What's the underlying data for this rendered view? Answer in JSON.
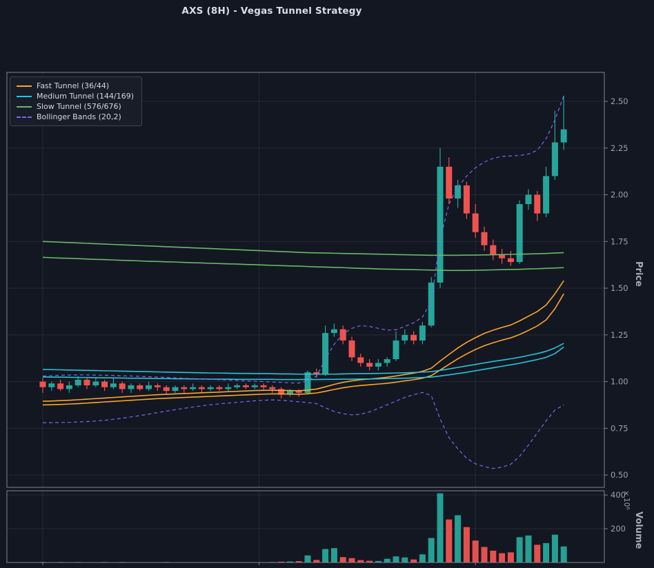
{
  "title": "AXS (8H) - Vegas Tunnel Strategy",
  "legend": [
    {
      "label": "Fast Tunnel (36/44)",
      "color": "#ffa726",
      "dash": false
    },
    {
      "label": "Medium Tunnel (144/169)",
      "color": "#26c6da",
      "dash": false
    },
    {
      "label": "Slow Tunnel (576/676)",
      "color": "#66bb6a",
      "dash": false
    },
    {
      "label": "Bollinger Bands (20,2)",
      "color": "#7b68ee",
      "dash": true
    }
  ],
  "axes": {
    "price_label": "Price",
    "price_ticks": [
      "2.50",
      "2.25",
      "2.00",
      "1.75",
      "1.50",
      "1.25",
      "1.00",
      "0.75",
      "0.50"
    ],
    "volume_label": "Volume",
    "volume_exponent": "×10⁶",
    "volume_ticks": [
      "400",
      "200"
    ]
  },
  "chart_data": {
    "type": "candlestick",
    "symbol": "AXS",
    "timeframe": "8H",
    "price_range": [
      0.434,
      2.655
    ],
    "volume_range": [
      0,
      425
    ],
    "vgrid_indices": [
      0,
      24.5,
      49
    ],
    "up_color": "#26a69a",
    "down_color": "#ef5350",
    "open": [
      1.0,
      0.97,
      0.99,
      0.96,
      0.98,
      1.01,
      0.98,
      1.0,
      0.97,
      0.99,
      0.96,
      0.98,
      0.96,
      0.98,
      0.97,
      0.95,
      0.97,
      0.96,
      0.97,
      0.96,
      0.97,
      0.96,
      0.97,
      0.98,
      0.97,
      0.98,
      0.97,
      0.96,
      0.93,
      0.95,
      0.94,
      1.05,
      1.04,
      1.26,
      1.28,
      1.22,
      1.13,
      1.1,
      1.08,
      1.1,
      1.12,
      1.22,
      1.25,
      1.22,
      1.3,
      1.53,
      2.15,
      1.98,
      2.05,
      1.9,
      1.8,
      1.73,
      1.68,
      1.66,
      1.64,
      1.95,
      2.0,
      1.9,
      2.1,
      2.28
    ],
    "close": [
      0.97,
      0.99,
      0.96,
      0.98,
      1.01,
      0.98,
      1.0,
      0.97,
      0.99,
      0.96,
      0.98,
      0.96,
      0.98,
      0.97,
      0.95,
      0.97,
      0.96,
      0.97,
      0.96,
      0.97,
      0.96,
      0.97,
      0.98,
      0.97,
      0.98,
      0.97,
      0.96,
      0.93,
      0.95,
      0.94,
      1.05,
      1.04,
      1.26,
      1.28,
      1.22,
      1.13,
      1.1,
      1.08,
      1.1,
      1.12,
      1.22,
      1.25,
      1.22,
      1.3,
      1.53,
      2.15,
      1.98,
      2.05,
      1.9,
      1.8,
      1.73,
      1.68,
      1.66,
      1.64,
      1.95,
      2.0,
      1.9,
      2.1,
      2.28,
      2.35
    ],
    "high": [
      1.02,
      1.0,
      1.01,
      1.0,
      1.03,
      1.02,
      1.02,
      1.01,
      1.02,
      1.0,
      0.99,
      0.99,
      1.0,
      0.99,
      0.98,
      0.98,
      0.98,
      0.99,
      0.98,
      0.98,
      0.98,
      0.99,
      0.99,
      0.99,
      0.99,
      0.99,
      0.98,
      0.97,
      0.96,
      0.96,
      1.06,
      1.07,
      1.3,
      1.31,
      1.3,
      1.24,
      1.15,
      1.12,
      1.12,
      1.13,
      1.27,
      1.28,
      1.27,
      1.32,
      1.56,
      2.25,
      2.2,
      2.08,
      2.07,
      1.95,
      1.83,
      1.76,
      1.71,
      1.7,
      1.97,
      2.03,
      2.02,
      2.15,
      2.45,
      2.53
    ],
    "low": [
      0.94,
      0.95,
      0.95,
      0.94,
      0.97,
      0.96,
      0.97,
      0.95,
      0.96,
      0.94,
      0.94,
      0.95,
      0.95,
      0.95,
      0.93,
      0.94,
      0.94,
      0.95,
      0.94,
      0.95,
      0.95,
      0.95,
      0.96,
      0.96,
      0.96,
      0.95,
      0.94,
      0.91,
      0.92,
      0.92,
      0.93,
      1.02,
      1.03,
      1.24,
      1.2,
      1.11,
      1.08,
      1.06,
      1.06,
      1.08,
      1.11,
      1.2,
      1.2,
      1.2,
      1.29,
      1.5,
      1.95,
      1.93,
      1.87,
      1.77,
      1.7,
      1.65,
      1.63,
      1.62,
      1.63,
      1.92,
      1.86,
      1.88,
      2.08,
      2.24
    ],
    "volume_millions": [
      3,
      2,
      3,
      2,
      3,
      2,
      2,
      3,
      2,
      3,
      2,
      2,
      2,
      2,
      3,
      2,
      2,
      2,
      2,
      2,
      2,
      2,
      2,
      2,
      2,
      2,
      3,
      5,
      6,
      8,
      42,
      15,
      80,
      85,
      32,
      26,
      14,
      10,
      9,
      22,
      36,
      30,
      18,
      48,
      145,
      410,
      255,
      280,
      210,
      130,
      92,
      70,
      55,
      60,
      150,
      160,
      105,
      115,
      165,
      95
    ],
    "overlays": [
      {
        "name": "fast-tunnel-upper",
        "color": "#ffa726",
        "width": 1.6,
        "dash": null,
        "values": [
          0.895,
          0.896,
          0.898,
          0.9,
          0.903,
          0.906,
          0.909,
          0.912,
          0.915,
          0.918,
          0.921,
          0.924,
          0.927,
          0.93,
          0.932,
          0.934,
          0.936,
          0.938,
          0.94,
          0.942,
          0.944,
          0.946,
          0.948,
          0.95,
          0.952,
          0.953,
          0.954,
          0.953,
          0.952,
          0.951,
          0.955,
          0.96,
          0.972,
          0.985,
          0.996,
          1.004,
          1.01,
          1.014,
          1.018,
          1.023,
          1.03,
          1.038,
          1.045,
          1.055,
          1.072,
          1.11,
          1.145,
          1.18,
          1.21,
          1.235,
          1.258,
          1.275,
          1.29,
          1.303,
          1.325,
          1.35,
          1.375,
          1.41,
          1.47,
          1.54
        ]
      },
      {
        "name": "fast-tunnel-lower",
        "color": "#ffa726",
        "width": 1.6,
        "dash": null,
        "values": [
          0.875,
          0.876,
          0.878,
          0.88,
          0.882,
          0.885,
          0.888,
          0.891,
          0.894,
          0.897,
          0.9,
          0.903,
          0.906,
          0.909,
          0.911,
          0.913,
          0.915,
          0.917,
          0.919,
          0.921,
          0.923,
          0.925,
          0.927,
          0.929,
          0.931,
          0.933,
          0.934,
          0.934,
          0.933,
          0.932,
          0.935,
          0.939,
          0.948,
          0.958,
          0.967,
          0.974,
          0.979,
          0.983,
          0.987,
          0.991,
          0.997,
          1.004,
          1.01,
          1.018,
          1.032,
          1.062,
          1.092,
          1.122,
          1.148,
          1.172,
          1.192,
          1.208,
          1.222,
          1.234,
          1.252,
          1.274,
          1.298,
          1.33,
          1.39,
          1.47
        ]
      },
      {
        "name": "medium-tunnel-upper",
        "color": "#26c6da",
        "width": 1.6,
        "dash": null,
        "values": [
          1.065,
          1.064,
          1.063,
          1.062,
          1.061,
          1.06,
          1.059,
          1.058,
          1.057,
          1.056,
          1.055,
          1.054,
          1.053,
          1.052,
          1.051,
          1.05,
          1.049,
          1.048,
          1.047,
          1.046,
          1.046,
          1.045,
          1.044,
          1.044,
          1.043,
          1.043,
          1.042,
          1.041,
          1.041,
          1.04,
          1.04,
          1.04,
          1.04,
          1.04,
          1.041,
          1.042,
          1.043,
          1.043,
          1.044,
          1.045,
          1.046,
          1.047,
          1.049,
          1.051,
          1.053,
          1.06,
          1.068,
          1.076,
          1.084,
          1.092,
          1.1,
          1.108,
          1.115,
          1.122,
          1.13,
          1.14,
          1.15,
          1.162,
          1.18,
          1.205
        ]
      },
      {
        "name": "medium-tunnel-lower",
        "color": "#26c6da",
        "width": 1.6,
        "dash": null,
        "values": [
          1.025,
          1.024,
          1.024,
          1.023,
          1.022,
          1.022,
          1.021,
          1.02,
          1.02,
          1.019,
          1.018,
          1.018,
          1.017,
          1.016,
          1.016,
          1.015,
          1.015,
          1.014,
          1.014,
          1.013,
          1.013,
          1.013,
          1.012,
          1.012,
          1.012,
          1.012,
          1.012,
          1.011,
          1.011,
          1.011,
          1.011,
          1.011,
          1.012,
          1.012,
          1.013,
          1.013,
          1.014,
          1.014,
          1.015,
          1.016,
          1.017,
          1.018,
          1.02,
          1.022,
          1.024,
          1.03,
          1.036,
          1.043,
          1.05,
          1.058,
          1.066,
          1.074,
          1.082,
          1.09,
          1.098,
          1.108,
          1.118,
          1.13,
          1.15,
          1.185
        ]
      },
      {
        "name": "slow-tunnel-upper",
        "color": "#66bb6a",
        "width": 1.6,
        "dash": null,
        "values": [
          1.75,
          1.748,
          1.746,
          1.744,
          1.742,
          1.74,
          1.738,
          1.736,
          1.734,
          1.732,
          1.73,
          1.728,
          1.726,
          1.724,
          1.722,
          1.72,
          1.718,
          1.716,
          1.714,
          1.712,
          1.71,
          1.708,
          1.706,
          1.704,
          1.702,
          1.7,
          1.698,
          1.696,
          1.694,
          1.692,
          1.69,
          1.689,
          1.688,
          1.687,
          1.686,
          1.685,
          1.684,
          1.683,
          1.682,
          1.681,
          1.68,
          1.679,
          1.678,
          1.677,
          1.676,
          1.676,
          1.676,
          1.676,
          1.677,
          1.677,
          1.678,
          1.679,
          1.68,
          1.681,
          1.682,
          1.683,
          1.684,
          1.686,
          1.688,
          1.69
        ]
      },
      {
        "name": "slow-tunnel-lower",
        "color": "#66bb6a",
        "width": 1.6,
        "dash": null,
        "values": [
          1.665,
          1.663,
          1.661,
          1.66,
          1.658,
          1.656,
          1.654,
          1.653,
          1.651,
          1.649,
          1.648,
          1.646,
          1.644,
          1.643,
          1.641,
          1.64,
          1.638,
          1.636,
          1.635,
          1.633,
          1.632,
          1.63,
          1.629,
          1.627,
          1.626,
          1.624,
          1.622,
          1.621,
          1.619,
          1.618,
          1.616,
          1.614,
          1.613,
          1.611,
          1.61,
          1.608,
          1.606,
          1.605,
          1.603,
          1.602,
          1.601,
          1.6,
          1.599,
          1.598,
          1.597,
          1.596,
          1.595,
          1.595,
          1.595,
          1.596,
          1.597,
          1.598,
          1.599,
          1.6,
          1.601,
          1.603,
          1.604,
          1.606,
          1.608,
          1.61
        ]
      },
      {
        "name": "bollinger-upper",
        "color": "#7b68ee",
        "width": 1.2,
        "dash": "5 4",
        "values": [
          1.03,
          1.032,
          1.034,
          1.035,
          1.036,
          1.036,
          1.035,
          1.034,
          1.033,
          1.031,
          1.03,
          1.028,
          1.026,
          1.024,
          1.022,
          1.02,
          1.018,
          1.016,
          1.014,
          1.012,
          1.01,
          1.008,
          1.006,
          1.004,
          1.002,
          1.0,
          0.998,
          0.996,
          0.993,
          0.992,
          1.005,
          1.03,
          1.12,
          1.2,
          1.255,
          1.285,
          1.3,
          1.295,
          1.285,
          1.275,
          1.278,
          1.295,
          1.315,
          1.345,
          1.43,
          1.76,
          1.95,
          2.04,
          2.1,
          2.145,
          2.175,
          2.195,
          2.205,
          2.208,
          2.21,
          2.218,
          2.238,
          2.3,
          2.4,
          2.53
        ]
      },
      {
        "name": "bollinger-lower",
        "color": "#7b68ee",
        "width": 1.2,
        "dash": "5 4",
        "values": [
          0.78,
          0.78,
          0.781,
          0.782,
          0.784,
          0.786,
          0.789,
          0.793,
          0.798,
          0.804,
          0.811,
          0.818,
          0.826,
          0.834,
          0.842,
          0.85,
          0.857,
          0.864,
          0.87,
          0.876,
          0.881,
          0.885,
          0.889,
          0.893,
          0.897,
          0.9,
          0.902,
          0.9,
          0.896,
          0.892,
          0.888,
          0.882,
          0.86,
          0.84,
          0.828,
          0.822,
          0.825,
          0.838,
          0.856,
          0.876,
          0.896,
          0.915,
          0.93,
          0.942,
          0.925,
          0.8,
          0.7,
          0.64,
          0.59,
          0.56,
          0.545,
          0.535,
          0.542,
          0.558,
          0.6,
          0.66,
          0.725,
          0.79,
          0.848,
          0.875
        ]
      }
    ]
  }
}
